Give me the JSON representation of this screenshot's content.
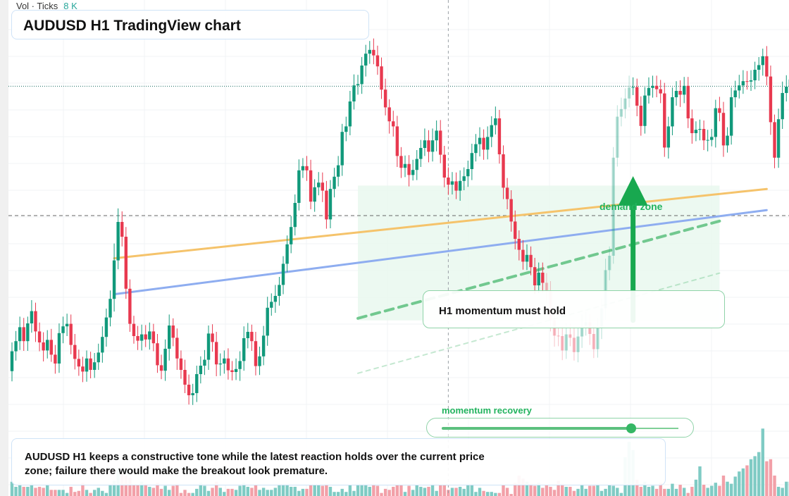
{
  "header": {
    "volume_label": "Vol · Ticks",
    "volume_value": "8 K",
    "title": "AUDUSD H1 TradingView chart"
  },
  "annotations": {
    "demand_label": "demand zone",
    "callout": "H1 momentum must hold",
    "momentum_label": "momentum recovery",
    "momentum_level": 0.8,
    "summary": "AUDUSD H1 keeps a constructive tone while the latest reaction holds over the current price zone; failure there would make the breakout look premature."
  },
  "colors": {
    "up": "#11997b",
    "down": "#e8394f",
    "up_volume": "#7fcbc4",
    "down_volume": "#f2a0a8",
    "trend_orange": "#f5c36b",
    "trend_blue": "#8eadf0",
    "accent_green": "#22b35e",
    "zone_fill": "#e9f8ee"
  },
  "chart_data": {
    "type": "candlestick",
    "symbol": "AUDUSD",
    "timeframe": "H1",
    "y_scale": "price (unlabeled)",
    "ylim": [
      0,
      100
    ],
    "grid": true,
    "candles": [
      [
        17.2,
        21.9,
        14.8,
        24.0
      ],
      [
        21.9,
        24.3,
        19.7,
        26.7
      ],
      [
        24.3,
        27.6,
        22.2,
        30.1
      ],
      [
        27.6,
        24.3,
        22.0,
        29.8
      ],
      [
        24.3,
        28.5,
        22.0,
        30.1
      ],
      [
        28.5,
        31.4,
        26.3,
        34.0
      ],
      [
        31.4,
        26.6,
        24.1,
        33.4
      ],
      [
        26.6,
        24.0,
        21.9,
        28.7
      ],
      [
        24.0,
        22.1,
        19.5,
        26.4
      ],
      [
        22.1,
        24.6,
        20.2,
        26.9
      ],
      [
        24.6,
        21.1,
        19.4,
        27.2
      ],
      [
        21.1,
        19.0,
        16.6,
        23.4
      ],
      [
        19.0,
        26.2,
        16.8,
        28.5
      ],
      [
        26.2,
        27.8,
        23.8,
        30.1
      ],
      [
        27.8,
        28.4,
        25.5,
        30.8
      ],
      [
        28.4,
        23.4,
        21.2,
        30.6
      ],
      [
        23.4,
        20.1,
        17.6,
        26.0
      ],
      [
        20.1,
        18.3,
        16.1,
        22.3
      ],
      [
        18.3,
        17.1,
        14.6,
        20.6
      ],
      [
        17.1,
        20.2,
        14.7,
        22.1
      ],
      [
        20.2,
        17.5,
        15.5,
        21.8
      ],
      [
        17.5,
        19.3,
        15.6,
        21.5
      ],
      [
        19.3,
        21.6,
        17.5,
        23.7
      ],
      [
        21.6,
        25.3,
        19.2,
        27.8
      ],
      [
        25.3,
        29.9,
        23.0,
        32.0
      ],
      [
        29.9,
        34.3,
        27.8,
        36.3
      ],
      [
        34.3,
        43.4,
        31.3,
        47.4
      ],
      [
        43.4,
        52.5,
        41.3,
        55.7
      ],
      [
        52.5,
        49.0,
        46.7,
        55.0
      ],
      [
        49.0,
        36.7,
        34.3,
        51.3
      ],
      [
        36.7,
        28.4,
        26.5,
        38.9
      ],
      [
        28.4,
        25.5,
        23.7,
        30.3
      ],
      [
        25.5,
        24.4,
        22.2,
        27.9
      ],
      [
        24.4,
        25.9,
        22.1,
        28.2
      ],
      [
        25.9,
        24.7,
        22.9,
        28.1
      ],
      [
        24.7,
        26.6,
        22.3,
        28.7
      ],
      [
        26.6,
        23.8,
        21.9,
        28.4
      ],
      [
        23.8,
        18.6,
        16.8,
        26.0
      ],
      [
        18.6,
        17.3,
        15.3,
        21.1
      ],
      [
        17.3,
        22.5,
        14.9,
        24.7
      ],
      [
        22.5,
        28.0,
        19.7,
        30.6
      ],
      [
        28.0,
        25.1,
        23.1,
        29.7
      ],
      [
        25.1,
        20.2,
        17.5,
        27.3
      ],
      [
        20.2,
        17.5,
        15.4,
        22.1
      ],
      [
        17.5,
        14.0,
        12.0,
        19.9
      ],
      [
        14.0,
        11.5,
        9.3,
        16.4
      ],
      [
        11.5,
        12.0,
        9.2,
        14.2
      ],
      [
        12.0,
        16.5,
        9.9,
        18.5
      ],
      [
        16.5,
        18.5,
        14.3,
        20.7
      ],
      [
        18.5,
        19.9,
        16.3,
        22.2
      ],
      [
        19.9,
        26.1,
        17.5,
        28.0
      ],
      [
        26.1,
        24.1,
        21.8,
        28.3
      ],
      [
        24.1,
        18.8,
        16.0,
        26.5
      ],
      [
        18.8,
        19.0,
        16.1,
        21.4
      ],
      [
        19.0,
        20.2,
        16.6,
        22.1
      ],
      [
        20.2,
        17.4,
        15.2,
        22.6
      ],
      [
        17.4,
        17.0,
        15.0,
        19.6
      ],
      [
        17.0,
        17.7,
        15.1,
        20.2
      ],
      [
        17.7,
        19.6,
        14.9,
        21.9
      ],
      [
        19.6,
        25.0,
        17.3,
        27.8
      ],
      [
        25.0,
        26.5,
        22.6,
        28.6
      ],
      [
        26.5,
        24.3,
        22.0,
        28.2
      ],
      [
        24.3,
        18.4,
        16.2,
        26.5
      ],
      [
        18.4,
        20.7,
        16.3,
        23.0
      ],
      [
        20.7,
        25.6,
        18.6,
        27.9
      ],
      [
        25.6,
        32.2,
        23.2,
        34.8
      ],
      [
        32.2,
        33.6,
        30.3,
        35.6
      ],
      [
        33.6,
        35.0,
        31.0,
        37.6
      ],
      [
        35.0,
        37.6,
        32.7,
        39.5
      ],
      [
        37.6,
        42.6,
        35.4,
        44.4
      ],
      [
        42.6,
        47.2,
        40.6,
        49.3
      ],
      [
        47.2,
        51.3,
        45.1,
        53.9
      ],
      [
        51.3,
        57.0,
        49.3,
        59.0
      ],
      [
        57.0,
        64.7,
        55.2,
        67.3
      ],
      [
        64.7,
        65.7,
        62.9,
        67.6
      ],
      [
        65.7,
        64.7,
        62.2,
        68.1
      ],
      [
        64.7,
        57.3,
        55.5,
        67.2
      ],
      [
        57.3,
        60.7,
        54.9,
        62.6
      ],
      [
        60.7,
        61.8,
        58.8,
        64.3
      ],
      [
        61.8,
        59.9,
        57.2,
        64.2
      ],
      [
        59.9,
        53.1,
        50.9,
        62.2
      ],
      [
        53.1,
        60.3,
        51.0,
        62.4
      ],
      [
        60.3,
        63.2,
        58.3,
        65.3
      ],
      [
        63.2,
        65.9,
        60.9,
        68.1
      ],
      [
        65.9,
        73.8,
        63.4,
        75.7
      ],
      [
        73.8,
        75.1,
        71.6,
        77.4
      ],
      [
        75.1,
        81.0,
        73.0,
        83.5
      ],
      [
        81.0,
        84.8,
        79.1,
        87.4
      ],
      [
        84.8,
        85.1,
        82.6,
        87.3
      ],
      [
        85.1,
        89.5,
        82.8,
        91.5
      ],
      [
        89.5,
        92.3,
        86.9,
        94.4
      ],
      [
        92.3,
        93.2,
        89.9,
        95.3
      ],
      [
        93.2,
        91.9,
        89.8,
        95.9
      ],
      [
        91.9,
        89.3,
        87.3,
        94.2
      ],
      [
        89.3,
        83.8,
        81.6,
        91.4
      ],
      [
        83.8,
        79.6,
        77.7,
        86.4
      ],
      [
        79.6,
        76.3,
        73.4,
        81.5
      ],
      [
        76.3,
        75.1,
        72.7,
        78.8
      ],
      [
        75.1,
        68.1,
        65.5,
        77.6
      ],
      [
        68.1,
        65.3,
        62.9,
        70.2
      ],
      [
        65.3,
        66.2,
        63.1,
        68.2
      ],
      [
        66.2,
        63.6,
        60.9,
        68.3
      ],
      [
        63.6,
        64.8,
        62.3,
        67.2
      ],
      [
        64.8,
        67.4,
        62.4,
        69.5
      ],
      [
        67.4,
        70.0,
        65.5,
        71.9
      ],
      [
        70.0,
        71.8,
        68.1,
        74.6
      ],
      [
        71.8,
        69.1,
        66.6,
        74.2
      ],
      [
        69.1,
        71.8,
        66.8,
        74.6
      ],
      [
        71.8,
        74.1,
        69.2,
        76.5
      ],
      [
        74.1,
        68.4,
        66.4,
        76.6
      ],
      [
        68.4,
        63.0,
        60.7,
        70.5
      ],
      [
        63.0,
        61.3,
        58.9,
        65.4
      ],
      [
        61.3,
        62.1,
        59.0,
        64.3
      ],
      [
        62.1,
        59.9,
        57.9,
        64.2
      ],
      [
        59.9,
        62.2,
        57.5,
        64.7
      ],
      [
        62.2,
        63.3,
        60.0,
        65.4
      ],
      [
        63.3,
        65.0,
        60.8,
        67.0
      ],
      [
        65.0,
        68.8,
        62.4,
        71.0
      ],
      [
        68.8,
        70.9,
        66.8,
        73.3
      ],
      [
        70.9,
        72.4,
        68.0,
        74.9
      ],
      [
        72.4,
        69.6,
        67.2,
        74.4
      ],
      [
        69.6,
        72.6,
        67.3,
        75.1
      ],
      [
        72.6,
        75.4,
        70.2,
        77.5
      ],
      [
        75.4,
        77.0,
        73.2,
        79.8
      ],
      [
        77.0,
        68.5,
        66.3,
        79.0
      ],
      [
        68.5,
        60.6,
        57.9,
        70.6
      ],
      [
        60.6,
        57.9,
        55.5,
        62.9
      ],
      [
        57.9,
        52.6,
        50.2,
        60.0
      ],
      [
        52.6,
        48.5,
        46.0,
        55.2
      ],
      [
        48.5,
        45.9,
        43.4,
        50.5
      ],
      [
        45.9,
        43.1,
        41.2,
        48.2
      ],
      [
        43.1,
        44.7,
        41.1,
        47.2
      ],
      [
        44.7,
        41.8,
        39.9,
        46.7
      ],
      [
        41.8,
        37.5,
        35.4,
        44.0
      ],
      [
        37.5,
        40.5,
        35.7,
        42.9
      ],
      [
        40.5,
        38.1,
        35.9,
        42.9
      ],
      [
        38.1,
        36.1,
        33.3,
        40.4
      ],
      [
        36.1,
        29.3,
        26.6,
        38.5
      ],
      [
        29.3,
        25.6,
        23.0,
        31.8
      ],
      [
        25.6,
        25.5,
        23.1,
        27.7
      ],
      [
        25.5,
        22.1,
        19.8,
        27.9
      ],
      [
        22.1,
        25.9,
        20.1,
        28.6
      ],
      [
        25.9,
        25.1,
        23.1,
        28.4
      ],
      [
        25.1,
        21.7,
        19.7,
        27.7
      ],
      [
        21.7,
        25.4,
        19.3,
        27.5
      ],
      [
        25.4,
        27.9,
        22.7,
        30.6
      ],
      [
        27.9,
        28.8,
        25.6,
        31.2
      ],
      [
        28.8,
        26.0,
        23.4,
        30.8
      ],
      [
        26.0,
        22.4,
        20.3,
        28.0
      ],
      [
        22.4,
        27.4,
        20.4,
        29.7
      ],
      [
        27.4,
        32.1,
        24.8,
        34.4
      ],
      [
        32.1,
        41.1,
        29.4,
        43.8
      ],
      [
        41.1,
        44.5,
        38.7,
        46.7
      ],
      [
        44.5,
        67.7,
        42.6,
        70.2
      ],
      [
        67.7,
        77.4,
        65.6,
        80.1
      ],
      [
        77.4,
        79.2,
        75.1,
        81.9
      ],
      [
        79.2,
        81.7,
        77.0,
        84.1
      ],
      [
        81.7,
        84.3,
        79.6,
        87.1
      ],
      [
        84.3,
        84.4,
        82.5,
        86.7
      ],
      [
        84.4,
        80.0,
        77.5,
        86.4
      ],
      [
        80.0,
        75.2,
        72.9,
        82.2
      ],
      [
        75.2,
        82.4,
        73.4,
        84.4
      ],
      [
        82.4,
        84.2,
        80.5,
        86.7
      ],
      [
        84.2,
        84.7,
        81.9,
        87.1
      ],
      [
        84.7,
        83.9,
        82.0,
        87.1
      ],
      [
        83.9,
        82.9,
        80.6,
        86.1
      ],
      [
        82.9,
        70.1,
        67.9,
        85.4
      ],
      [
        70.1,
        75.1,
        67.5,
        77.4
      ],
      [
        75.1,
        82.0,
        73.0,
        84.3
      ],
      [
        82.0,
        83.5,
        80.0,
        85.8
      ],
      [
        83.5,
        82.6,
        79.7,
        86.0
      ],
      [
        82.6,
        84.7,
        80.6,
        86.8
      ],
      [
        84.7,
        77.0,
        74.7,
        86.8
      ],
      [
        77.0,
        73.5,
        71.0,
        79.1
      ],
      [
        73.5,
        74.3,
        71.6,
        76.3
      ],
      [
        74.3,
        74.5,
        71.8,
        76.7
      ],
      [
        74.5,
        71.8,
        69.5,
        76.5
      ],
      [
        71.8,
        71.9,
        69.2,
        74.3
      ],
      [
        71.9,
        72.6,
        70.4,
        74.5
      ],
      [
        72.6,
        79.4,
        70.1,
        81.4
      ],
      [
        79.4,
        78.3,
        76.3,
        82.1
      ],
      [
        78.3,
        70.6,
        67.9,
        80.9
      ],
      [
        70.6,
        72.9,
        68.9,
        74.9
      ],
      [
        72.9,
        82.0,
        70.8,
        84.3
      ],
      [
        82.0,
        83.6,
        79.6,
        85.9
      ],
      [
        83.6,
        84.8,
        81.7,
        87.3
      ],
      [
        84.8,
        85.8,
        82.8,
        88.4
      ],
      [
        85.8,
        85.7,
        83.8,
        88.2
      ],
      [
        85.7,
        86.0,
        83.5,
        88.4
      ],
      [
        86.0,
        88.5,
        83.9,
        90.4
      ],
      [
        88.5,
        89.6,
        85.9,
        91.5
      ],
      [
        89.6,
        91.7,
        87.1,
        93.5
      ],
      [
        91.7,
        86.9,
        84.8,
        94.1
      ],
      [
        86.9,
        76.1,
        73.1,
        89.5
      ],
      [
        76.1,
        67.7,
        65.2,
        77.9
      ],
      [
        67.7,
        76.8,
        65.3,
        79.3
      ],
      [
        76.8,
        83.0,
        74.5,
        85.7
      ],
      [
        83.0,
        84.5,
        81.0,
        87.2
      ],
      [
        84.5,
        86.2,
        82.2,
        88.4
      ],
      [
        86.2,
        79.4,
        77.0,
        87.9
      ],
      [
        79.4,
        78.7,
        76.2,
        82.5
      ],
      [
        78.7,
        77.3,
        75.2,
        79.9
      ],
      [
        77.3,
        75.1,
        72.6,
        79.6
      ],
      [
        75.1,
        74.4,
        72.1,
        77.3
      ],
      [
        74.4,
        75.8,
        72.4,
        77.7
      ]
    ],
    "volume": [
      14,
      9,
      13,
      9,
      9,
      13,
      8,
      9,
      8,
      12,
      6,
      6,
      6,
      6,
      3,
      9,
      4,
      5,
      13,
      6,
      3,
      6,
      8,
      5,
      3,
      12,
      15,
      27,
      23,
      20,
      18,
      11,
      11,
      14,
      12,
      9,
      8,
      13,
      7,
      10,
      6,
      10,
      12,
      3,
      6,
      3,
      3,
      7,
      13,
      10,
      5,
      8,
      14,
      8,
      4,
      7,
      7,
      6,
      10,
      13,
      9,
      8,
      11,
      6,
      8,
      6,
      6,
      8,
      12,
      12,
      12,
      9,
      9,
      5,
      7,
      7,
      11,
      11,
      11,
      10,
      12,
      9,
      4,
      4,
      7,
      4,
      11,
      5,
      12,
      12,
      12,
      9,
      12,
      10,
      3,
      7,
      6,
      9,
      11,
      11,
      4,
      10,
      6,
      11,
      9,
      8,
      9,
      12,
      5,
      11,
      11,
      6,
      8,
      8,
      9,
      7,
      12,
      12,
      4,
      8,
      5,
      4,
      4,
      3,
      3,
      11,
      8,
      2,
      13,
      20,
      17,
      14,
      12,
      10,
      13,
      8,
      11,
      9,
      6,
      15,
      12,
      9,
      9,
      5,
      7,
      12,
      7,
      10,
      10,
      12,
      5,
      7,
      11,
      10,
      8,
      3,
      38,
      53,
      45,
      16,
      9,
      14,
      9,
      10,
      7,
      13,
      7,
      7,
      12,
      7,
      11,
      8,
      3,
      9,
      16,
      29,
      11,
      8,
      10,
      13,
      10,
      20,
      14,
      12,
      19,
      24,
      27,
      30,
      36,
      39,
      43,
      66,
      34,
      36,
      20,
      9,
      8,
      14,
      14,
      5,
      3,
      9,
      10,
      14
    ],
    "lines": [
      {
        "label": "",
        "style": "solid",
        "color": "orange",
        "from": [
          26,
          43.9
        ],
        "to": [
          192,
          60.3
        ]
      },
      {
        "label": "",
        "style": "solid",
        "color": "blue",
        "from": [
          26,
          35.4
        ],
        "to": [
          192,
          55.3
        ]
      },
      {
        "label": "",
        "style": "dashed",
        "color": "green",
        "from": [
          88,
          29.7
        ],
        "to": [
          180,
          52.7
        ]
      },
      {
        "label": "",
        "style": "dashed-faint",
        "color": "green",
        "from": [
          88,
          16.7
        ],
        "to": [
          180,
          40.4
        ]
      }
    ],
    "zone": {
      "from_index": 88,
      "to_index": 180,
      "low": 29.2,
      "high": 61.1
    },
    "arrow": {
      "index": 158,
      "from": 29.2,
      "to": 59.0
    },
    "levels": [
      {
        "price": 84.6,
        "style": "dotted"
      },
      {
        "price": 54.0,
        "style": "dashed"
      }
    ],
    "crosshair_index": 111
  }
}
